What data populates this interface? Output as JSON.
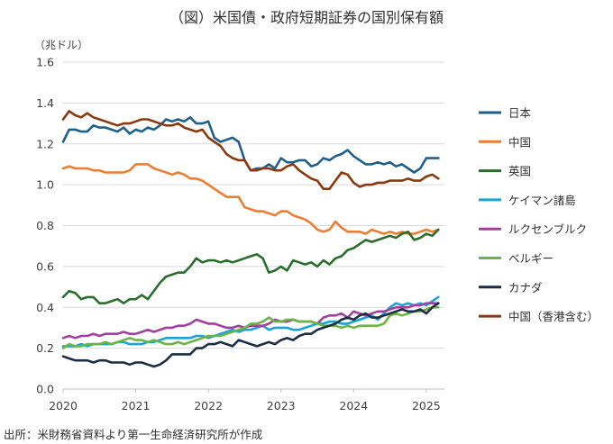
{
  "chart_data": {
    "type": "line",
    "title": "（図）米国債・政府短期証券の国別保有額",
    "ylabel": "（兆ドル）",
    "xlabel": "",
    "ylim": [
      0.0,
      1.6
    ],
    "yticks": [
      "0.0",
      "0.2",
      "0.4",
      "0.6",
      "0.8",
      "1.0",
      "1.2",
      "1.4",
      "1.6"
    ],
    "xlim": [
      2020.0,
      2025.25
    ],
    "xticks": [
      "2020",
      "2021",
      "2022",
      "2023",
      "2024",
      "2025"
    ],
    "grid": "horizontal",
    "legend_position": "right",
    "source": "出所：米財務省資料より第一生命経済研究所が作成",
    "x": [
      2020.0,
      2020.083,
      2020.167,
      2020.25,
      2020.333,
      2020.417,
      2020.5,
      2020.583,
      2020.667,
      2020.75,
      2020.833,
      2020.917,
      2021.0,
      2021.083,
      2021.167,
      2021.25,
      2021.333,
      2021.417,
      2021.5,
      2021.583,
      2021.667,
      2021.75,
      2021.833,
      2021.917,
      2022.0,
      2022.083,
      2022.167,
      2022.25,
      2022.333,
      2022.417,
      2022.5,
      2022.583,
      2022.667,
      2022.75,
      2022.833,
      2022.917,
      2023.0,
      2023.083,
      2023.167,
      2023.25,
      2023.333,
      2023.417,
      2023.5,
      2023.583,
      2023.667,
      2023.75,
      2023.833,
      2023.917,
      2024.0,
      2024.083,
      2024.167,
      2024.25,
      2024.333,
      2024.417,
      2024.5,
      2024.583,
      2024.667,
      2024.75,
      2024.833,
      2024.917,
      2025.0,
      2025.083,
      2025.167
    ],
    "series": [
      {
        "name": "日本",
        "color": "#1f5f8b",
        "values": [
          1.21,
          1.27,
          1.27,
          1.26,
          1.26,
          1.29,
          1.28,
          1.28,
          1.27,
          1.26,
          1.28,
          1.25,
          1.27,
          1.26,
          1.28,
          1.27,
          1.29,
          1.32,
          1.31,
          1.32,
          1.31,
          1.33,
          1.3,
          1.3,
          1.31,
          1.23,
          1.21,
          1.22,
          1.23,
          1.21,
          1.12,
          1.07,
          1.08,
          1.08,
          1.1,
          1.08,
          1.13,
          1.11,
          1.11,
          1.12,
          1.12,
          1.09,
          1.1,
          1.13,
          1.12,
          1.14,
          1.15,
          1.17,
          1.14,
          1.12,
          1.1,
          1.1,
          1.11,
          1.1,
          1.11,
          1.09,
          1.1,
          1.08,
          1.06,
          1.08,
          1.13,
          1.13,
          1.13
        ]
      },
      {
        "name": "中国",
        "color": "#ed7d31",
        "values": [
          1.08,
          1.09,
          1.08,
          1.08,
          1.08,
          1.07,
          1.07,
          1.06,
          1.06,
          1.06,
          1.06,
          1.07,
          1.1,
          1.1,
          1.1,
          1.08,
          1.07,
          1.06,
          1.05,
          1.06,
          1.05,
          1.03,
          1.03,
          1.02,
          1.0,
          0.98,
          0.96,
          0.94,
          0.94,
          0.94,
          0.89,
          0.88,
          0.87,
          0.87,
          0.86,
          0.85,
          0.87,
          0.87,
          0.85,
          0.84,
          0.83,
          0.81,
          0.78,
          0.77,
          0.78,
          0.82,
          0.79,
          0.77,
          0.77,
          0.77,
          0.76,
          0.78,
          0.77,
          0.76,
          0.77,
          0.76,
          0.77,
          0.76,
          0.76,
          0.77,
          0.78,
          0.77,
          0.78
        ]
      },
      {
        "name": "英国",
        "color": "#2a6e2c",
        "values": [
          0.45,
          0.48,
          0.47,
          0.44,
          0.45,
          0.45,
          0.42,
          0.42,
          0.43,
          0.44,
          0.42,
          0.44,
          0.44,
          0.46,
          0.44,
          0.48,
          0.52,
          0.55,
          0.56,
          0.57,
          0.57,
          0.6,
          0.64,
          0.62,
          0.63,
          0.63,
          0.62,
          0.63,
          0.62,
          0.63,
          0.64,
          0.65,
          0.66,
          0.64,
          0.57,
          0.58,
          0.6,
          0.58,
          0.63,
          0.62,
          0.61,
          0.62,
          0.6,
          0.63,
          0.61,
          0.64,
          0.65,
          0.68,
          0.69,
          0.71,
          0.73,
          0.72,
          0.73,
          0.74,
          0.75,
          0.74,
          0.76,
          0.77,
          0.73,
          0.74,
          0.76,
          0.75,
          0.78
        ]
      },
      {
        "name": "ケイマン諸島",
        "color": "#1aa3d9",
        "values": [
          0.21,
          0.21,
          0.21,
          0.22,
          0.21,
          0.22,
          0.22,
          0.22,
          0.22,
          0.23,
          0.23,
          0.22,
          0.22,
          0.22,
          0.23,
          0.23,
          0.24,
          0.25,
          0.25,
          0.25,
          0.25,
          0.25,
          0.26,
          0.26,
          0.25,
          0.26,
          0.27,
          0.28,
          0.29,
          0.28,
          0.29,
          0.29,
          0.3,
          0.31,
          0.29,
          0.3,
          0.3,
          0.3,
          0.29,
          0.29,
          0.3,
          0.31,
          0.32,
          0.32,
          0.33,
          0.33,
          0.32,
          0.32,
          0.33,
          0.34,
          0.35,
          0.36,
          0.34,
          0.37,
          0.4,
          0.42,
          0.41,
          0.42,
          0.41,
          0.42,
          0.41,
          0.43,
          0.45
        ]
      },
      {
        "name": "ルクセンブルク",
        "color": "#a23fa0",
        "values": [
          0.25,
          0.26,
          0.25,
          0.26,
          0.26,
          0.27,
          0.26,
          0.27,
          0.27,
          0.27,
          0.28,
          0.27,
          0.27,
          0.28,
          0.29,
          0.28,
          0.29,
          0.3,
          0.3,
          0.31,
          0.31,
          0.32,
          0.34,
          0.33,
          0.32,
          0.32,
          0.31,
          0.3,
          0.3,
          0.31,
          0.3,
          0.31,
          0.31,
          0.31,
          0.32,
          0.34,
          0.33,
          0.33,
          0.34,
          0.33,
          0.33,
          0.33,
          0.32,
          0.35,
          0.36,
          0.36,
          0.37,
          0.35,
          0.38,
          0.37,
          0.36,
          0.37,
          0.38,
          0.38,
          0.39,
          0.4,
          0.4,
          0.4,
          0.41,
          0.41,
          0.42,
          0.42,
          0.42
        ]
      },
      {
        "name": "ベルギー",
        "color": "#6cb545",
        "values": [
          0.2,
          0.22,
          0.21,
          0.21,
          0.22,
          0.22,
          0.22,
          0.23,
          0.22,
          0.23,
          0.24,
          0.25,
          0.24,
          0.24,
          0.23,
          0.24,
          0.23,
          0.22,
          0.22,
          0.23,
          0.22,
          0.23,
          0.24,
          0.25,
          0.26,
          0.26,
          0.26,
          0.27,
          0.28,
          0.29,
          0.3,
          0.32,
          0.32,
          0.33,
          0.35,
          0.33,
          0.33,
          0.34,
          0.34,
          0.33,
          0.33,
          0.33,
          0.32,
          0.31,
          0.31,
          0.31,
          0.3,
          0.31,
          0.3,
          0.31,
          0.31,
          0.31,
          0.31,
          0.32,
          0.36,
          0.37,
          0.36,
          0.37,
          0.38,
          0.38,
          0.39,
          0.4,
          0.4
        ]
      },
      {
        "name": "カナダ",
        "color": "#1b2e45",
        "values": [
          0.16,
          0.15,
          0.14,
          0.14,
          0.14,
          0.13,
          0.14,
          0.14,
          0.13,
          0.13,
          0.13,
          0.12,
          0.13,
          0.13,
          0.12,
          0.11,
          0.12,
          0.14,
          0.17,
          0.17,
          0.17,
          0.17,
          0.2,
          0.2,
          0.22,
          0.22,
          0.23,
          0.22,
          0.21,
          0.24,
          0.23,
          0.22,
          0.21,
          0.22,
          0.23,
          0.22,
          0.24,
          0.25,
          0.24,
          0.26,
          0.27,
          0.27,
          0.29,
          0.3,
          0.31,
          0.32,
          0.34,
          0.35,
          0.34,
          0.36,
          0.37,
          0.35,
          0.35,
          0.36,
          0.37,
          0.38,
          0.39,
          0.38,
          0.38,
          0.39,
          0.37,
          0.4,
          0.42
        ]
      },
      {
        "name": "中国（香港含む）",
        "color": "#8b3a0f",
        "values": [
          1.32,
          1.36,
          1.34,
          1.33,
          1.35,
          1.33,
          1.32,
          1.31,
          1.3,
          1.29,
          1.3,
          1.3,
          1.31,
          1.32,
          1.32,
          1.31,
          1.3,
          1.29,
          1.29,
          1.3,
          1.28,
          1.27,
          1.26,
          1.27,
          1.23,
          1.21,
          1.19,
          1.15,
          1.13,
          1.12,
          1.12,
          1.07,
          1.07,
          1.08,
          1.08,
          1.07,
          1.07,
          1.09,
          1.1,
          1.07,
          1.05,
          1.03,
          1.02,
          0.98,
          0.98,
          1.02,
          1.06,
          1.05,
          1.01,
          0.99,
          1.0,
          1.0,
          1.01,
          1.01,
          1.02,
          1.02,
          1.02,
          1.03,
          1.02,
          1.02,
          1.04,
          1.05,
          1.03
        ]
      }
    ]
  }
}
